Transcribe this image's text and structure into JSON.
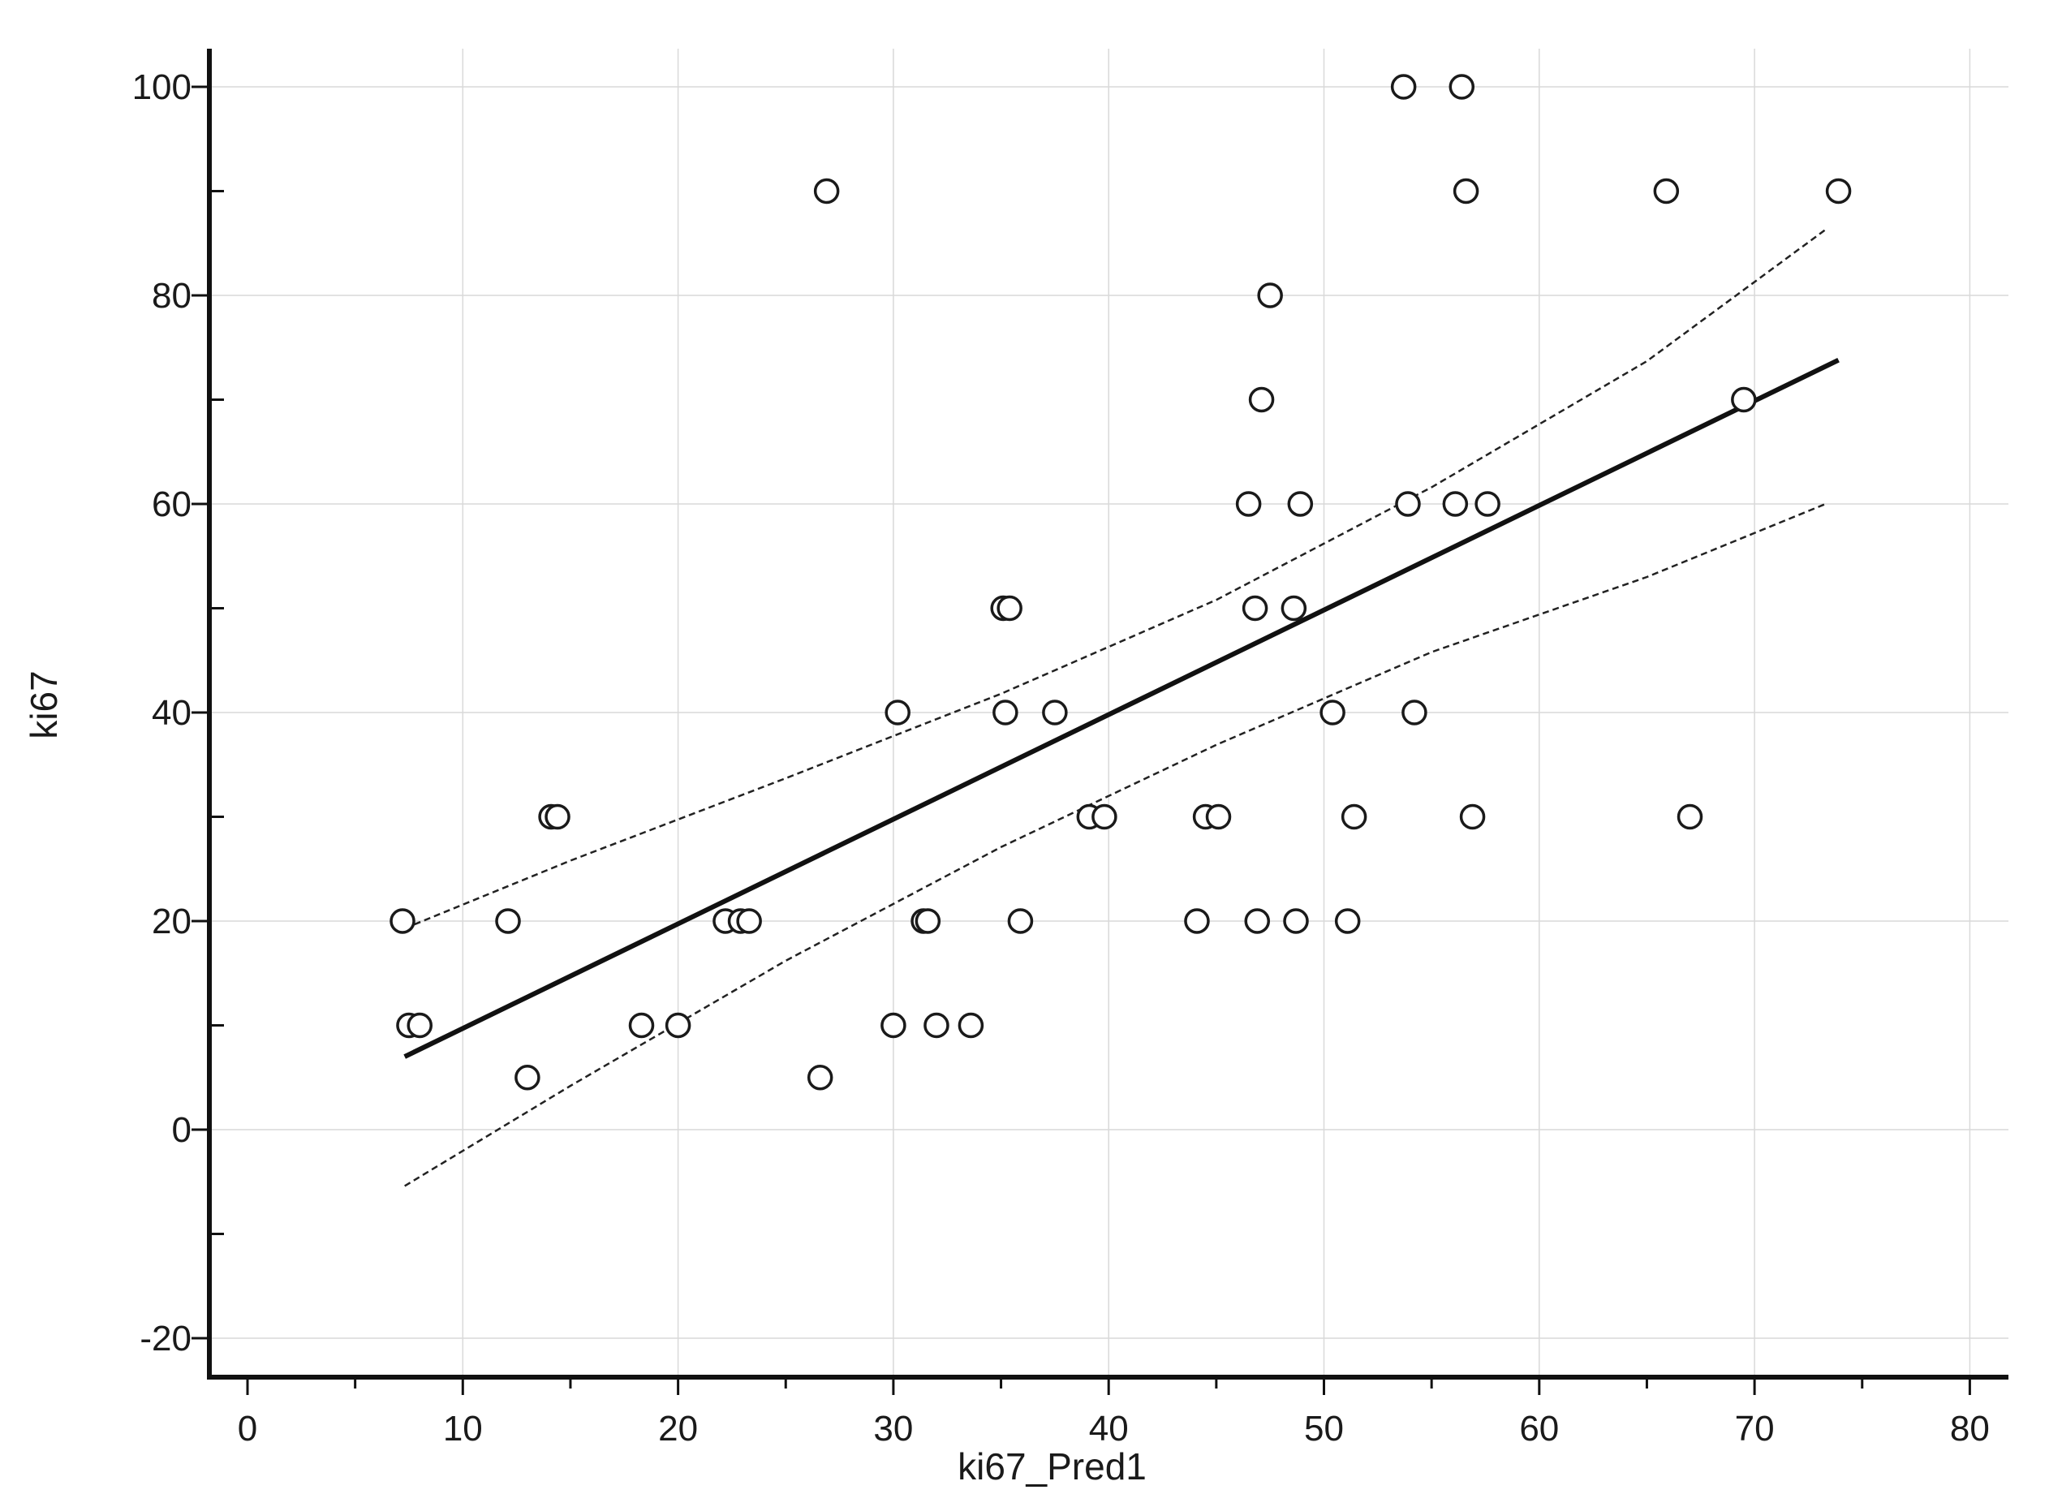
{
  "chart_data": {
    "type": "scatter",
    "xlabel": "ki67_Pred1",
    "ylabel": "ki67",
    "xlim": [
      -2,
      82
    ],
    "ylim": [
      -23,
      103
    ],
    "x_ticks": [
      0,
      10,
      20,
      30,
      40,
      50,
      60,
      70,
      80
    ],
    "x_minor_ticks": [
      5,
      15,
      25,
      35,
      45,
      55,
      65,
      75
    ],
    "y_ticks": [
      -20,
      0,
      20,
      40,
      60,
      80,
      100
    ],
    "y_minor_ticks": [
      -10,
      10,
      30,
      50,
      70,
      90
    ],
    "grid": true,
    "legend": "none",
    "points": [
      {
        "x": 53.7,
        "y": 100
      },
      {
        "x": 56.4,
        "y": 100
      },
      {
        "x": 26.9,
        "y": 90
      },
      {
        "x": 56.6,
        "y": 90
      },
      {
        "x": 65.9,
        "y": 90
      },
      {
        "x": 73.9,
        "y": 90
      },
      {
        "x": 47.5,
        "y": 80
      },
      {
        "x": 47.1,
        "y": 70
      },
      {
        "x": 69.5,
        "y": 70
      },
      {
        "x": 46.5,
        "y": 60
      },
      {
        "x": 48.9,
        "y": 60
      },
      {
        "x": 53.9,
        "y": 60
      },
      {
        "x": 56.1,
        "y": 60
      },
      {
        "x": 57.6,
        "y": 60
      },
      {
        "x": 35.1,
        "y": 50
      },
      {
        "x": 35.4,
        "y": 50
      },
      {
        "x": 46.8,
        "y": 50
      },
      {
        "x": 48.6,
        "y": 50
      },
      {
        "x": 30.2,
        "y": 40
      },
      {
        "x": 35.2,
        "y": 40
      },
      {
        "x": 37.5,
        "y": 40
      },
      {
        "x": 50.4,
        "y": 40
      },
      {
        "x": 54.2,
        "y": 40
      },
      {
        "x": 14.1,
        "y": 30
      },
      {
        "x": 14.4,
        "y": 30
      },
      {
        "x": 39.1,
        "y": 30
      },
      {
        "x": 39.8,
        "y": 30
      },
      {
        "x": 44.5,
        "y": 30
      },
      {
        "x": 45.1,
        "y": 30
      },
      {
        "x": 51.4,
        "y": 30
      },
      {
        "x": 56.9,
        "y": 30
      },
      {
        "x": 67.0,
        "y": 30
      },
      {
        "x": 7.2,
        "y": 20
      },
      {
        "x": 12.1,
        "y": 20
      },
      {
        "x": 22.2,
        "y": 20
      },
      {
        "x": 22.9,
        "y": 20
      },
      {
        "x": 23.3,
        "y": 20
      },
      {
        "x": 31.4,
        "y": 20
      },
      {
        "x": 31.6,
        "y": 20
      },
      {
        "x": 35.9,
        "y": 20
      },
      {
        "x": 44.1,
        "y": 20
      },
      {
        "x": 46.9,
        "y": 20
      },
      {
        "x": 48.7,
        "y": 20
      },
      {
        "x": 51.1,
        "y": 20
      },
      {
        "x": 7.5,
        "y": 10
      },
      {
        "x": 8.0,
        "y": 10
      },
      {
        "x": 18.3,
        "y": 10
      },
      {
        "x": 20.0,
        "y": 10
      },
      {
        "x": 30.0,
        "y": 10
      },
      {
        "x": 32.0,
        "y": 10
      },
      {
        "x": 33.6,
        "y": 10
      },
      {
        "x": 13.0,
        "y": 5
      },
      {
        "x": 26.6,
        "y": 5
      }
    ],
    "regression_line": {
      "x": [
        7.3,
        73.9
      ],
      "y": [
        7.0,
        73.8
      ]
    },
    "confidence_upper": {
      "x": [
        7.3,
        15,
        25,
        35,
        45,
        55,
        65,
        73.3
      ],
      "y": [
        19.3,
        25.8,
        33.7,
        41.8,
        50.8,
        61.6,
        73.7,
        86.3
      ]
    },
    "confidence_lower": {
      "x": [
        7.3,
        15,
        25,
        35,
        45,
        55,
        65,
        73.3
      ],
      "y": [
        -5.4,
        4.2,
        16.2,
        27.1,
        36.9,
        45.8,
        53.0,
        60.0
      ]
    }
  }
}
